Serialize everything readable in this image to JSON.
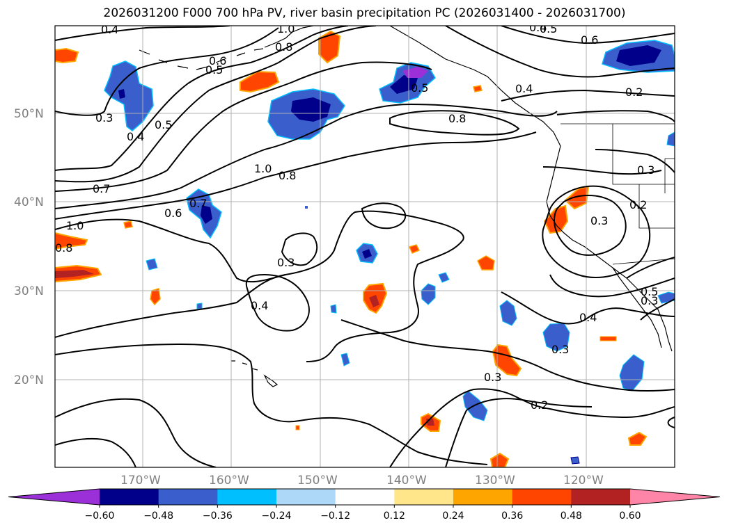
{
  "title": "2026031200 F000 700 hPa PV, river basin precipitation PC (2026031400 - 2026031700)",
  "lat_labels": [
    "50°N",
    "40°N",
    "30°N",
    "20°N"
  ],
  "lon_labels": [
    "170°W",
    "160°W",
    "150°W",
    "140°W",
    "130°W",
    "120°W"
  ],
  "contour_labels": [
    "0.4",
    "1.0",
    "0.8",
    "0.6",
    "0.5",
    "0.4",
    "0.6",
    "0.5",
    "0.4",
    "0.2",
    "0.3",
    "0.4",
    "0.5",
    "0.5",
    "0.8",
    "1.0",
    "0.8",
    "0.7",
    "0.7",
    "0.6",
    "1.0",
    "0.8",
    "0.3",
    "0.4",
    "0.3",
    "0.3",
    "0.2",
    "0.3",
    "0.4",
    "0.3",
    "0.3",
    "0.2",
    "0.5"
  ],
  "colorbar": {
    "ticks": [
      "−0.60",
      "−0.48",
      "−0.36",
      "−0.24",
      "−0.12",
      "0.12",
      "0.24",
      "0.36",
      "0.48",
      "0.60"
    ],
    "colors": [
      "#9b30d9",
      "#00008b",
      "#3a5fcd",
      "#00bfff",
      "#add8f7",
      "#ffffff",
      "#ffe68a",
      "#ffa500",
      "#ff4500",
      "#b22222",
      "#ff85a8"
    ]
  },
  "colors": {
    "dark_purple": "#9b30d9",
    "navy": "#00008b",
    "blue": "#3a5fcd",
    "cyan": "#00bfff",
    "light_blue": "#add8f7",
    "yellow": "#ffe68a",
    "orange": "#ffa500",
    "red_orange": "#ff4500",
    "dark_red": "#b22222",
    "pink": "#ff85a8"
  }
}
